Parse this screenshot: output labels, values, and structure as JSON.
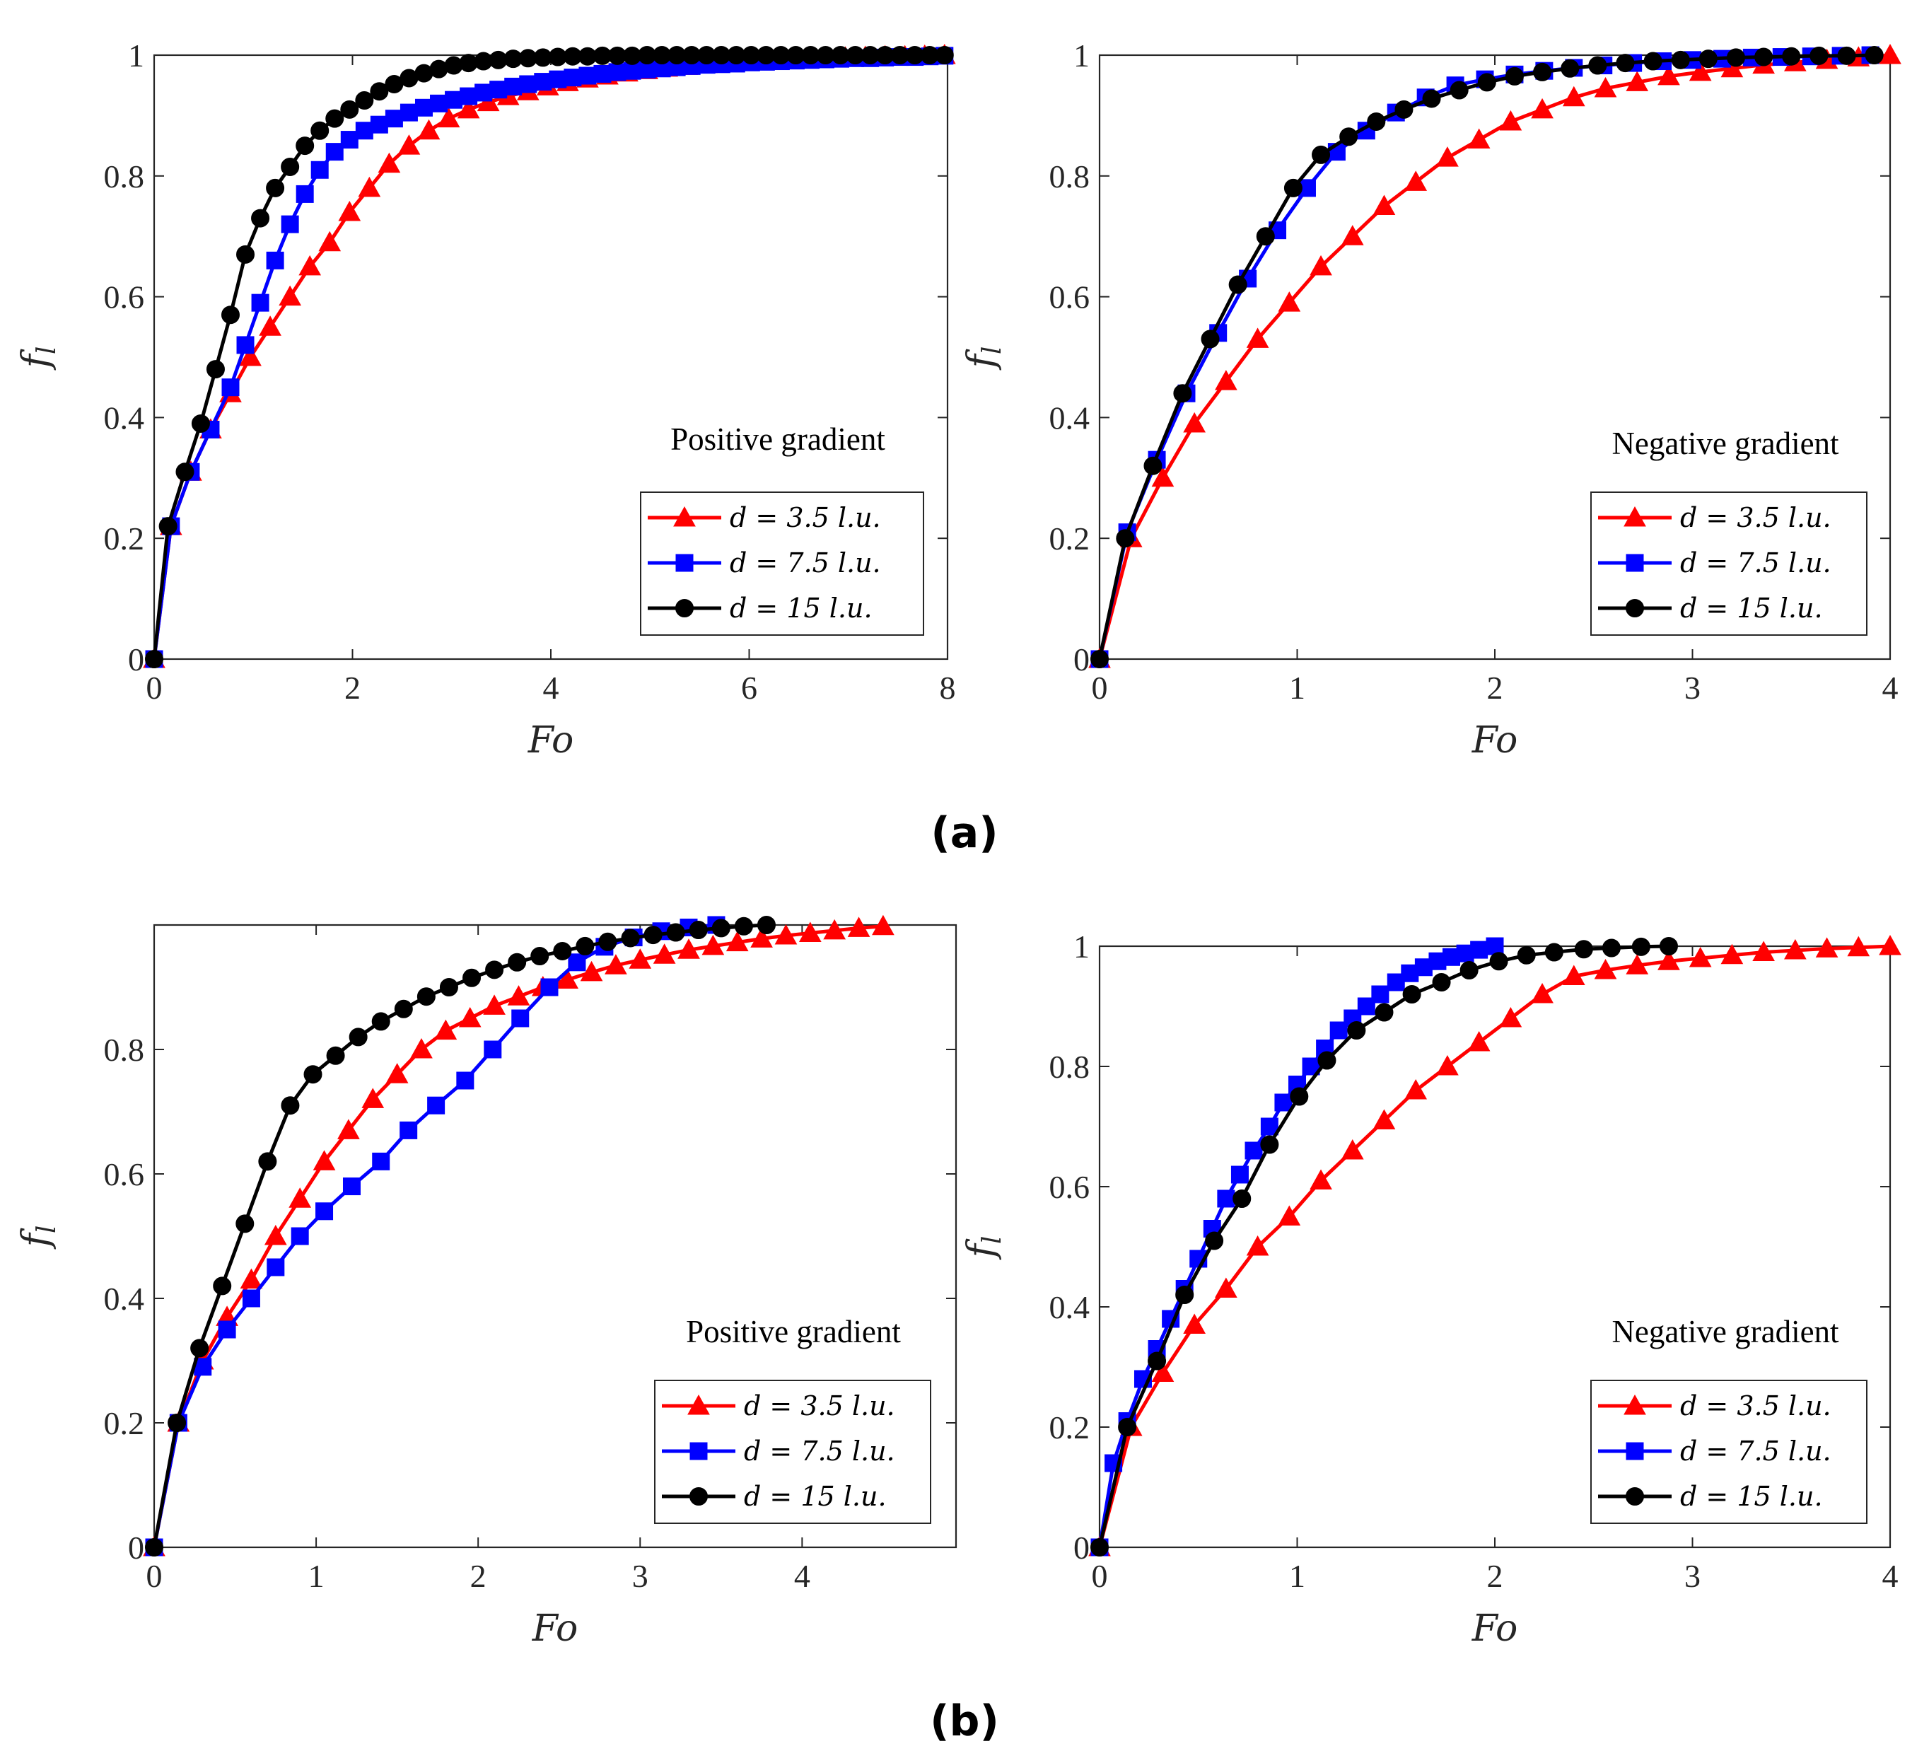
{
  "figure": {
    "label_a": "(a)",
    "label_b": "(b)"
  },
  "chart_data": [
    {
      "type": "line",
      "panel": "a-left",
      "xlabel": "Fo",
      "ylabel": "f_l",
      "xlim": [
        0,
        8
      ],
      "ylim": [
        0,
        1
      ],
      "xticks": [
        0,
        2,
        4,
        6,
        8
      ],
      "yticks": [
        0,
        0.2,
        0.4,
        0.6,
        0.8,
        1
      ],
      "annotation": "Positive gradient",
      "series": [
        {
          "name": "d = 3.5 l.u.",
          "color": "#ff0000",
          "marker": "triangle",
          "x": [
            0,
            0.17,
            0.37,
            0.57,
            0.77,
            0.97,
            1.17,
            1.37,
            1.57,
            1.77,
            1.97,
            2.17,
            2.37,
            2.57,
            2.77,
            2.97,
            3.17,
            3.37,
            3.57,
            3.77,
            3.97,
            4.17,
            4.37,
            4.57,
            4.77,
            4.97,
            5.17,
            5.37,
            5.57,
            5.77,
            5.97,
            6.17,
            6.37,
            6.57,
            6.77,
            6.97,
            7.17,
            7.37,
            7.57,
            7.77,
            7.97
          ],
          "y": [
            0,
            0.22,
            0.31,
            0.38,
            0.44,
            0.5,
            0.55,
            0.6,
            0.65,
            0.69,
            0.74,
            0.78,
            0.82,
            0.85,
            0.875,
            0.895,
            0.91,
            0.922,
            0.932,
            0.94,
            0.948,
            0.955,
            0.961,
            0.966,
            0.971,
            0.975,
            0.979,
            0.982,
            0.985,
            0.987,
            0.989,
            0.991,
            0.993,
            0.994,
            0.995,
            0.996,
            0.997,
            0.998,
            0.998,
            0.999,
            1.0
          ]
        },
        {
          "name": "d = 7.5 l.u.",
          "color": "#0000ff",
          "marker": "square",
          "x": [
            0,
            0.17,
            0.37,
            0.57,
            0.77,
            0.92,
            1.07,
            1.22,
            1.37,
            1.52,
            1.67,
            1.82,
            1.97,
            2.12,
            2.27,
            2.42,
            2.57,
            2.72,
            2.87,
            3.02,
            3.17,
            3.32,
            3.47,
            3.62,
            3.77,
            3.92,
            4.07,
            4.22,
            4.37,
            4.52,
            4.67,
            4.82,
            4.97,
            5.12,
            5.27,
            5.42,
            5.57,
            5.72,
            5.87,
            6.02,
            6.17,
            6.32,
            6.47,
            6.62,
            6.77,
            6.92,
            7.07,
            7.22,
            7.37,
            7.52,
            7.67,
            7.82,
            7.97
          ],
          "y": [
            0,
            0.22,
            0.31,
            0.38,
            0.45,
            0.52,
            0.59,
            0.66,
            0.72,
            0.77,
            0.81,
            0.84,
            0.86,
            0.875,
            0.885,
            0.895,
            0.905,
            0.913,
            0.92,
            0.926,
            0.932,
            0.938,
            0.943,
            0.948,
            0.952,
            0.956,
            0.96,
            0.963,
            0.966,
            0.969,
            0.972,
            0.974,
            0.976,
            0.978,
            0.98,
            0.982,
            0.984,
            0.985,
            0.986,
            0.988,
            0.989,
            0.99,
            0.991,
            0.992,
            0.993,
            0.994,
            0.995,
            0.995,
            0.996,
            0.997,
            0.997,
            0.998,
            0.999
          ]
        },
        {
          "name": "d = 15 l.u.",
          "color": "#000000",
          "marker": "circle",
          "x": [
            0,
            0.14,
            0.31,
            0.47,
            0.62,
            0.77,
            0.92,
            1.07,
            1.22,
            1.37,
            1.52,
            1.67,
            1.82,
            1.97,
            2.12,
            2.27,
            2.42,
            2.57,
            2.72,
            2.87,
            3.02,
            3.17,
            3.32,
            3.47,
            3.62,
            3.77,
            3.92,
            4.07,
            4.22,
            4.37,
            4.52,
            4.67,
            4.82,
            4.97,
            5.12,
            5.27,
            5.42,
            5.57,
            5.72,
            5.87,
            6.02,
            6.17,
            6.32,
            6.47,
            6.62,
            6.77,
            6.92,
            7.07,
            7.22,
            7.37,
            7.52,
            7.67,
            7.82,
            7.97
          ],
          "y": [
            0,
            0.22,
            0.31,
            0.39,
            0.48,
            0.57,
            0.67,
            0.73,
            0.78,
            0.815,
            0.85,
            0.875,
            0.895,
            0.91,
            0.925,
            0.94,
            0.952,
            0.962,
            0.97,
            0.977,
            0.983,
            0.987,
            0.99,
            0.992,
            0.994,
            0.995,
            0.996,
            0.997,
            0.998,
            0.998,
            0.999,
            0.999,
            0.999,
            1.0,
            1.0,
            1.0,
            1.0,
            1.0,
            1.0,
            1.0,
            1.0,
            1.0,
            1.0,
            1.0,
            1.0,
            1.0,
            1.0,
            1.0,
            1.0,
            1.0,
            1.0,
            1.0,
            1.0,
            1.0
          ]
        }
      ]
    },
    {
      "type": "line",
      "panel": "a-right",
      "xlabel": "Fo",
      "ylabel": "f_l",
      "xlim": [
        0,
        4
      ],
      "ylim": [
        0,
        1
      ],
      "xticks": [
        0,
        1,
        2,
        3,
        4
      ],
      "yticks": [
        0,
        0.2,
        0.4,
        0.6,
        0.8,
        1
      ],
      "annotation": "Negative gradient",
      "series": [
        {
          "name": "d = 3.5 l.u.",
          "color": "#ff0000",
          "marker": "triangle",
          "x": [
            0,
            0.16,
            0.32,
            0.48,
            0.64,
            0.8,
            0.96,
            1.12,
            1.28,
            1.44,
            1.6,
            1.76,
            1.92,
            2.08,
            2.24,
            2.4,
            2.56,
            2.72,
            2.88,
            3.04,
            3.2,
            3.36,
            3.52,
            3.68,
            3.84,
            4.0
          ],
          "y": [
            0,
            0.2,
            0.3,
            0.39,
            0.46,
            0.53,
            0.59,
            0.65,
            0.7,
            0.75,
            0.79,
            0.83,
            0.86,
            0.89,
            0.91,
            0.93,
            0.945,
            0.955,
            0.965,
            0.972,
            0.978,
            0.984,
            0.988,
            0.992,
            0.996,
            1.0
          ]
        },
        {
          "name": "d = 7.5 l.u.",
          "color": "#0000ff",
          "marker": "square",
          "x": [
            0,
            0.14,
            0.29,
            0.44,
            0.6,
            0.75,
            0.9,
            1.05,
            1.2,
            1.35,
            1.5,
            1.65,
            1.8,
            1.95,
            2.1,
            2.25,
            2.4,
            2.55,
            2.7,
            2.85,
            3.0,
            3.15,
            3.3,
            3.45,
            3.6,
            3.75,
            3.9
          ],
          "y": [
            0,
            0.21,
            0.33,
            0.44,
            0.54,
            0.63,
            0.71,
            0.78,
            0.84,
            0.875,
            0.905,
            0.93,
            0.95,
            0.96,
            0.968,
            0.974,
            0.979,
            0.983,
            0.987,
            0.99,
            0.992,
            0.994,
            0.996,
            0.997,
            0.998,
            0.999,
            1.0
          ]
        },
        {
          "name": "d = 15 l.u.",
          "color": "#000000",
          "marker": "circle",
          "x": [
            0,
            0.13,
            0.27,
            0.42,
            0.56,
            0.7,
            0.84,
            0.98,
            1.12,
            1.26,
            1.4,
            1.54,
            1.68,
            1.82,
            1.96,
            2.1,
            2.24,
            2.38,
            2.52,
            2.66,
            2.8,
            2.94,
            3.08,
            3.22,
            3.36,
            3.5,
            3.64,
            3.78,
            3.92
          ],
          "y": [
            0,
            0.2,
            0.32,
            0.44,
            0.53,
            0.62,
            0.7,
            0.78,
            0.835,
            0.865,
            0.89,
            0.91,
            0.928,
            0.942,
            0.955,
            0.965,
            0.972,
            0.978,
            0.983,
            0.987,
            0.99,
            0.992,
            0.994,
            0.996,
            0.997,
            0.998,
            0.999,
            0.999,
            1.0
          ]
        }
      ]
    },
    {
      "type": "line",
      "panel": "b-left",
      "xlabel": "Fo",
      "ylabel": "f_l",
      "xlim": [
        0,
        4.95
      ],
      "ylim": [
        0,
        1
      ],
      "xticks": [
        0,
        1,
        2,
        3,
        4
      ],
      "yticks": [
        0,
        0.2,
        0.4,
        0.6,
        0.8
      ],
      "annotation": "Positive gradient",
      "series": [
        {
          "name": "d = 3.5 l.u.",
          "color": "#ff0000",
          "marker": "triangle",
          "x": [
            0,
            0.15,
            0.3,
            0.45,
            0.6,
            0.75,
            0.9,
            1.05,
            1.2,
            1.35,
            1.5,
            1.65,
            1.8,
            1.95,
            2.1,
            2.25,
            2.4,
            2.55,
            2.7,
            2.85,
            3.0,
            3.15,
            3.3,
            3.45,
            3.6,
            3.75,
            3.9,
            4.05,
            4.2,
            4.35,
            4.5
          ],
          "y": [
            0,
            0.2,
            0.3,
            0.37,
            0.43,
            0.5,
            0.56,
            0.62,
            0.67,
            0.72,
            0.76,
            0.8,
            0.83,
            0.85,
            0.87,
            0.885,
            0.9,
            0.912,
            0.924,
            0.935,
            0.944,
            0.952,
            0.96,
            0.966,
            0.972,
            0.978,
            0.983,
            0.987,
            0.991,
            0.995,
            0.998
          ]
        },
        {
          "name": "d = 7.5 l.u.",
          "color": "#0000ff",
          "marker": "square",
          "x": [
            0,
            0.15,
            0.3,
            0.45,
            0.6,
            0.75,
            0.9,
            1.05,
            1.22,
            1.4,
            1.57,
            1.74,
            1.92,
            2.09,
            2.26,
            2.44,
            2.61,
            2.78,
            2.96,
            3.13,
            3.3,
            3.47
          ],
          "y": [
            0,
            0.2,
            0.29,
            0.35,
            0.4,
            0.45,
            0.5,
            0.54,
            0.58,
            0.62,
            0.67,
            0.71,
            0.75,
            0.8,
            0.85,
            0.9,
            0.94,
            0.965,
            0.98,
            0.99,
            0.996,
            1.0
          ]
        },
        {
          "name": "d = 15 l.u.",
          "color": "#000000",
          "marker": "circle",
          "x": [
            0,
            0.14,
            0.28,
            0.42,
            0.56,
            0.7,
            0.84,
            0.98,
            1.12,
            1.26,
            1.4,
            1.54,
            1.68,
            1.82,
            1.96,
            2.1,
            2.24,
            2.38,
            2.52,
            2.66,
            2.8,
            2.94,
            3.08,
            3.22,
            3.36,
            3.5,
            3.64,
            3.78
          ],
          "y": [
            0,
            0.2,
            0.32,
            0.42,
            0.52,
            0.62,
            0.71,
            0.76,
            0.79,
            0.82,
            0.845,
            0.865,
            0.885,
            0.9,
            0.915,
            0.928,
            0.94,
            0.95,
            0.958,
            0.966,
            0.973,
            0.979,
            0.984,
            0.988,
            0.992,
            0.995,
            0.998,
            1.0
          ]
        }
      ]
    },
    {
      "type": "line",
      "panel": "b-right",
      "xlabel": "Fo",
      "ylabel": "f_l",
      "xlim": [
        0,
        4
      ],
      "ylim": [
        0,
        1
      ],
      "xticks": [
        0,
        1,
        2,
        3,
        4
      ],
      "yticks": [
        0,
        0.2,
        0.4,
        0.6,
        0.8,
        1
      ],
      "annotation": "Negative gradient",
      "series": [
        {
          "name": "d = 3.5 l.u.",
          "color": "#ff0000",
          "marker": "triangle",
          "x": [
            0,
            0.16,
            0.32,
            0.48,
            0.64,
            0.8,
            0.96,
            1.12,
            1.28,
            1.44,
            1.6,
            1.76,
            1.92,
            2.08,
            2.24,
            2.4,
            2.56,
            2.72,
            2.88,
            3.04,
            3.2,
            3.36,
            3.52,
            3.68,
            3.84,
            4.0
          ],
          "y": [
            0,
            0.2,
            0.29,
            0.37,
            0.43,
            0.5,
            0.55,
            0.61,
            0.66,
            0.71,
            0.76,
            0.8,
            0.84,
            0.88,
            0.92,
            0.95,
            0.96,
            0.968,
            0.975,
            0.98,
            0.985,
            0.99,
            0.993,
            0.996,
            0.998,
            1.0
          ]
        },
        {
          "name": "d = 7.5 l.u.",
          "color": "#0000ff",
          "marker": "square",
          "x": [
            0,
            0.07,
            0.14,
            0.22,
            0.29,
            0.36,
            0.43,
            0.5,
            0.57,
            0.64,
            0.71,
            0.78,
            0.86,
            0.93,
            1.0,
            1.07,
            1.14,
            1.21,
            1.28,
            1.35,
            1.42,
            1.5,
            1.57,
            1.64,
            1.71,
            1.78,
            1.85,
            1.92,
            2.0
          ],
          "y": [
            0,
            0.14,
            0.21,
            0.28,
            0.33,
            0.38,
            0.43,
            0.48,
            0.53,
            0.58,
            0.62,
            0.66,
            0.7,
            0.74,
            0.77,
            0.8,
            0.83,
            0.86,
            0.88,
            0.9,
            0.92,
            0.94,
            0.955,
            0.965,
            0.975,
            0.982,
            0.988,
            0.994,
            1.0
          ]
        },
        {
          "name": "d = 15 l.u.",
          "color": "#000000",
          "marker": "circle",
          "x": [
            0,
            0.14,
            0.29,
            0.43,
            0.58,
            0.72,
            0.86,
            1.01,
            1.15,
            1.3,
            1.44,
            1.58,
            1.73,
            1.87,
            2.02,
            2.16,
            2.3,
            2.45,
            2.59,
            2.74,
            2.88
          ],
          "y": [
            0,
            0.2,
            0.31,
            0.42,
            0.51,
            0.58,
            0.67,
            0.75,
            0.81,
            0.86,
            0.89,
            0.92,
            0.94,
            0.96,
            0.975,
            0.985,
            0.99,
            0.995,
            0.997,
            0.999,
            1.0
          ]
        }
      ]
    }
  ]
}
